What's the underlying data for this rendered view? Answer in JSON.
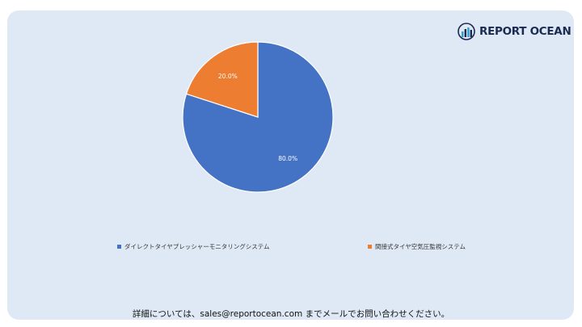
{
  "brand": {
    "name": "REPORT OCEAN"
  },
  "chart_data": {
    "type": "pie",
    "categories": [
      "ダイレクトタイヤプレッシャーモニタリングシステム",
      "間接式タイヤ空気圧監視システム"
    ],
    "values": [
      80.0,
      20.0
    ],
    "data_labels": [
      "80.0%",
      "20.0%"
    ],
    "colors": [
      "#4472c4",
      "#ed7d31"
    ],
    "legend_position": "bottom"
  },
  "footer": {
    "text": "詳細については、sales@reportocean.com までメールでお問い合わせください。"
  }
}
